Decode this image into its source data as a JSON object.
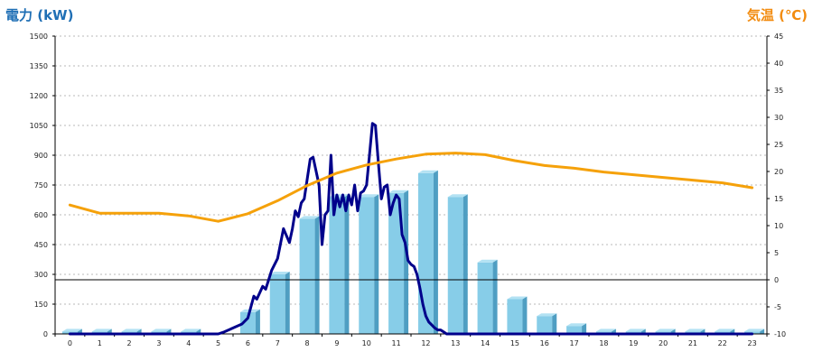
{
  "chart_data": {
    "type": "bar",
    "title": "",
    "left_axis": {
      "label": "電力 (kW)",
      "color": "#1f6fb5",
      "ylim": [
        0,
        1500
      ],
      "ticks": [
        "0",
        "150",
        "300",
        "450",
        "600",
        "750",
        "900",
        "1050",
        "1200",
        "1350",
        "1500"
      ]
    },
    "right_axis": {
      "label": "気温 (℃)",
      "color": "#f28c10",
      "ylim": [
        -10,
        45
      ],
      "ticks": [
        "-10",
        "-5",
        "0",
        "5",
        "10",
        "15",
        "20",
        "25",
        "30",
        "35",
        "40",
        "45"
      ]
    },
    "categories": [
      "0",
      "1",
      "2",
      "3",
      "4",
      "5",
      "6",
      "7",
      "8",
      "9",
      "10",
      "11",
      "12",
      "13",
      "14",
      "15",
      "16",
      "17",
      "18",
      "19",
      "20",
      "21",
      "22",
      "23"
    ],
    "grid": true,
    "reference_line": {
      "axis": "right",
      "value": 0
    },
    "series": [
      {
        "type": "bar",
        "axis": "left",
        "color": "#87cde8",
        "values": [
          12,
          12,
          12,
          12,
          12,
          0,
          110,
          300,
          580,
          690,
          690,
          710,
          810,
          690,
          360,
          175,
          90,
          40,
          12,
          12,
          12,
          12,
          12,
          12
        ]
      },
      {
        "type": "line",
        "axis": "left",
        "color": "#00008b",
        "x": [
          0,
          1,
          2,
          3,
          4,
          5,
          5.2,
          5.5,
          5.8,
          6,
          6.2,
          6.3,
          6.5,
          6.6,
          6.8,
          7,
          7.2,
          7.4,
          7.5,
          7.6,
          7.7,
          7.8,
          7.9,
          8,
          8.1,
          8.2,
          8.3,
          8.4,
          8.5,
          8.6,
          8.7,
          8.8,
          8.9,
          9,
          9.1,
          9.2,
          9.3,
          9.4,
          9.5,
          9.6,
          9.7,
          9.8,
          9.9,
          10,
          10.1,
          10.2,
          10.3,
          10.4,
          10.5,
          10.6,
          10.7,
          10.8,
          10.9,
          11,
          11.1,
          11.2,
          11.3,
          11.4,
          11.5,
          11.6,
          11.7,
          11.8,
          11.9,
          12,
          12.1,
          12.2,
          12.3,
          12.4,
          12.5,
          12.6,
          12.7,
          12.8,
          12.9,
          13,
          13.1,
          13.2,
          13.3,
          13.4,
          13.5,
          13.6,
          13.8,
          14,
          14.2,
          14.4,
          14.6,
          14.8,
          15,
          15.3,
          15.6,
          15.8,
          16,
          16.2,
          16.4,
          16.6,
          16.8,
          17,
          17.2,
          18,
          19,
          20,
          21,
          22,
          23
        ],
        "values": [
          0,
          0,
          0,
          0,
          0,
          0,
          10,
          30,
          50,
          80,
          190,
          175,
          240,
          225,
          320,
          380,
          530,
          460,
          530,
          620,
          590,
          660,
          680,
          780,
          880,
          890,
          820,
          750,
          450,
          600,
          620,
          900,
          600,
          700,
          640,
          700,
          620,
          700,
          650,
          750,
          620,
          710,
          720,
          750,
          900,
          1060,
          1050,
          860,
          680,
          740,
          750,
          600,
          660,
          700,
          680,
          500,
          460,
          370,
          350,
          340,
          300,
          230,
          150,
          90,
          60,
          45,
          30,
          20,
          20,
          10,
          0,
          0,
          0,
          0,
          0,
          0,
          0,
          0,
          0,
          0,
          0,
          0,
          0,
          0,
          0,
          0,
          0,
          0,
          0,
          0,
          0,
          0,
          0,
          0,
          0,
          0,
          0,
          0,
          0,
          0,
          0,
          0,
          0
        ]
      },
      {
        "type": "line",
        "axis": "right",
        "color": "#f5a10a",
        "x": [
          0,
          1,
          2,
          3,
          4,
          5,
          6,
          7,
          8,
          9,
          10,
          11,
          12,
          13,
          14,
          15,
          16,
          17,
          18,
          19,
          20,
          21,
          22,
          23
        ],
        "values": [
          13.8,
          12.3,
          12.3,
          12.3,
          11.8,
          10.8,
          12.2,
          14.6,
          17.4,
          19.7,
          21.2,
          22.3,
          23.2,
          23.4,
          23.1,
          22.0,
          21.1,
          20.6,
          19.9,
          19.4,
          18.9,
          18.4,
          17.9,
          17.0
        ]
      }
    ]
  }
}
